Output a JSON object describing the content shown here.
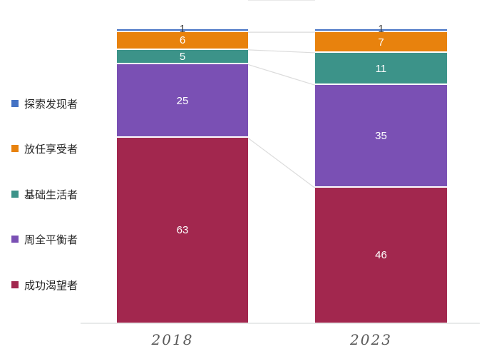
{
  "chart_data": {
    "type": "bar",
    "stacked": true,
    "orientation": "vertical",
    "categories": [
      "2018",
      "2023"
    ],
    "series": [
      {
        "name": "探索发现者",
        "color": "#4472C4",
        "values": [
          1,
          1
        ]
      },
      {
        "name": "放任享受者",
        "color": "#E8820D",
        "values": [
          6,
          7
        ]
      },
      {
        "name": "基础生活者",
        "color": "#3C9389",
        "values": [
          5,
          11
        ]
      },
      {
        "name": "周全平衡者",
        "color": "#7A50B4",
        "values": [
          25,
          35
        ]
      },
      {
        "name": "成功渴望者",
        "color": "#A2274E",
        "values": [
          63,
          46
        ]
      }
    ],
    "bar_totals": [
      100,
      100
    ],
    "value_labels": [
      [
        "1",
        "6",
        "5",
        "25",
        "63"
      ],
      [
        "1",
        "7",
        "11",
        "35",
        "46"
      ]
    ],
    "legend_position": "left",
    "gridlines": false,
    "series_connector_lines": true
  },
  "style_colors": {
    "value_label_inside": "#FFFFFF",
    "value_label_outside": "#404040",
    "axis_baseline": "#E8EAEA",
    "category_label": "#595959",
    "connector_line": "#DCDCDC",
    "segment_gap": "#FFFFFF"
  }
}
